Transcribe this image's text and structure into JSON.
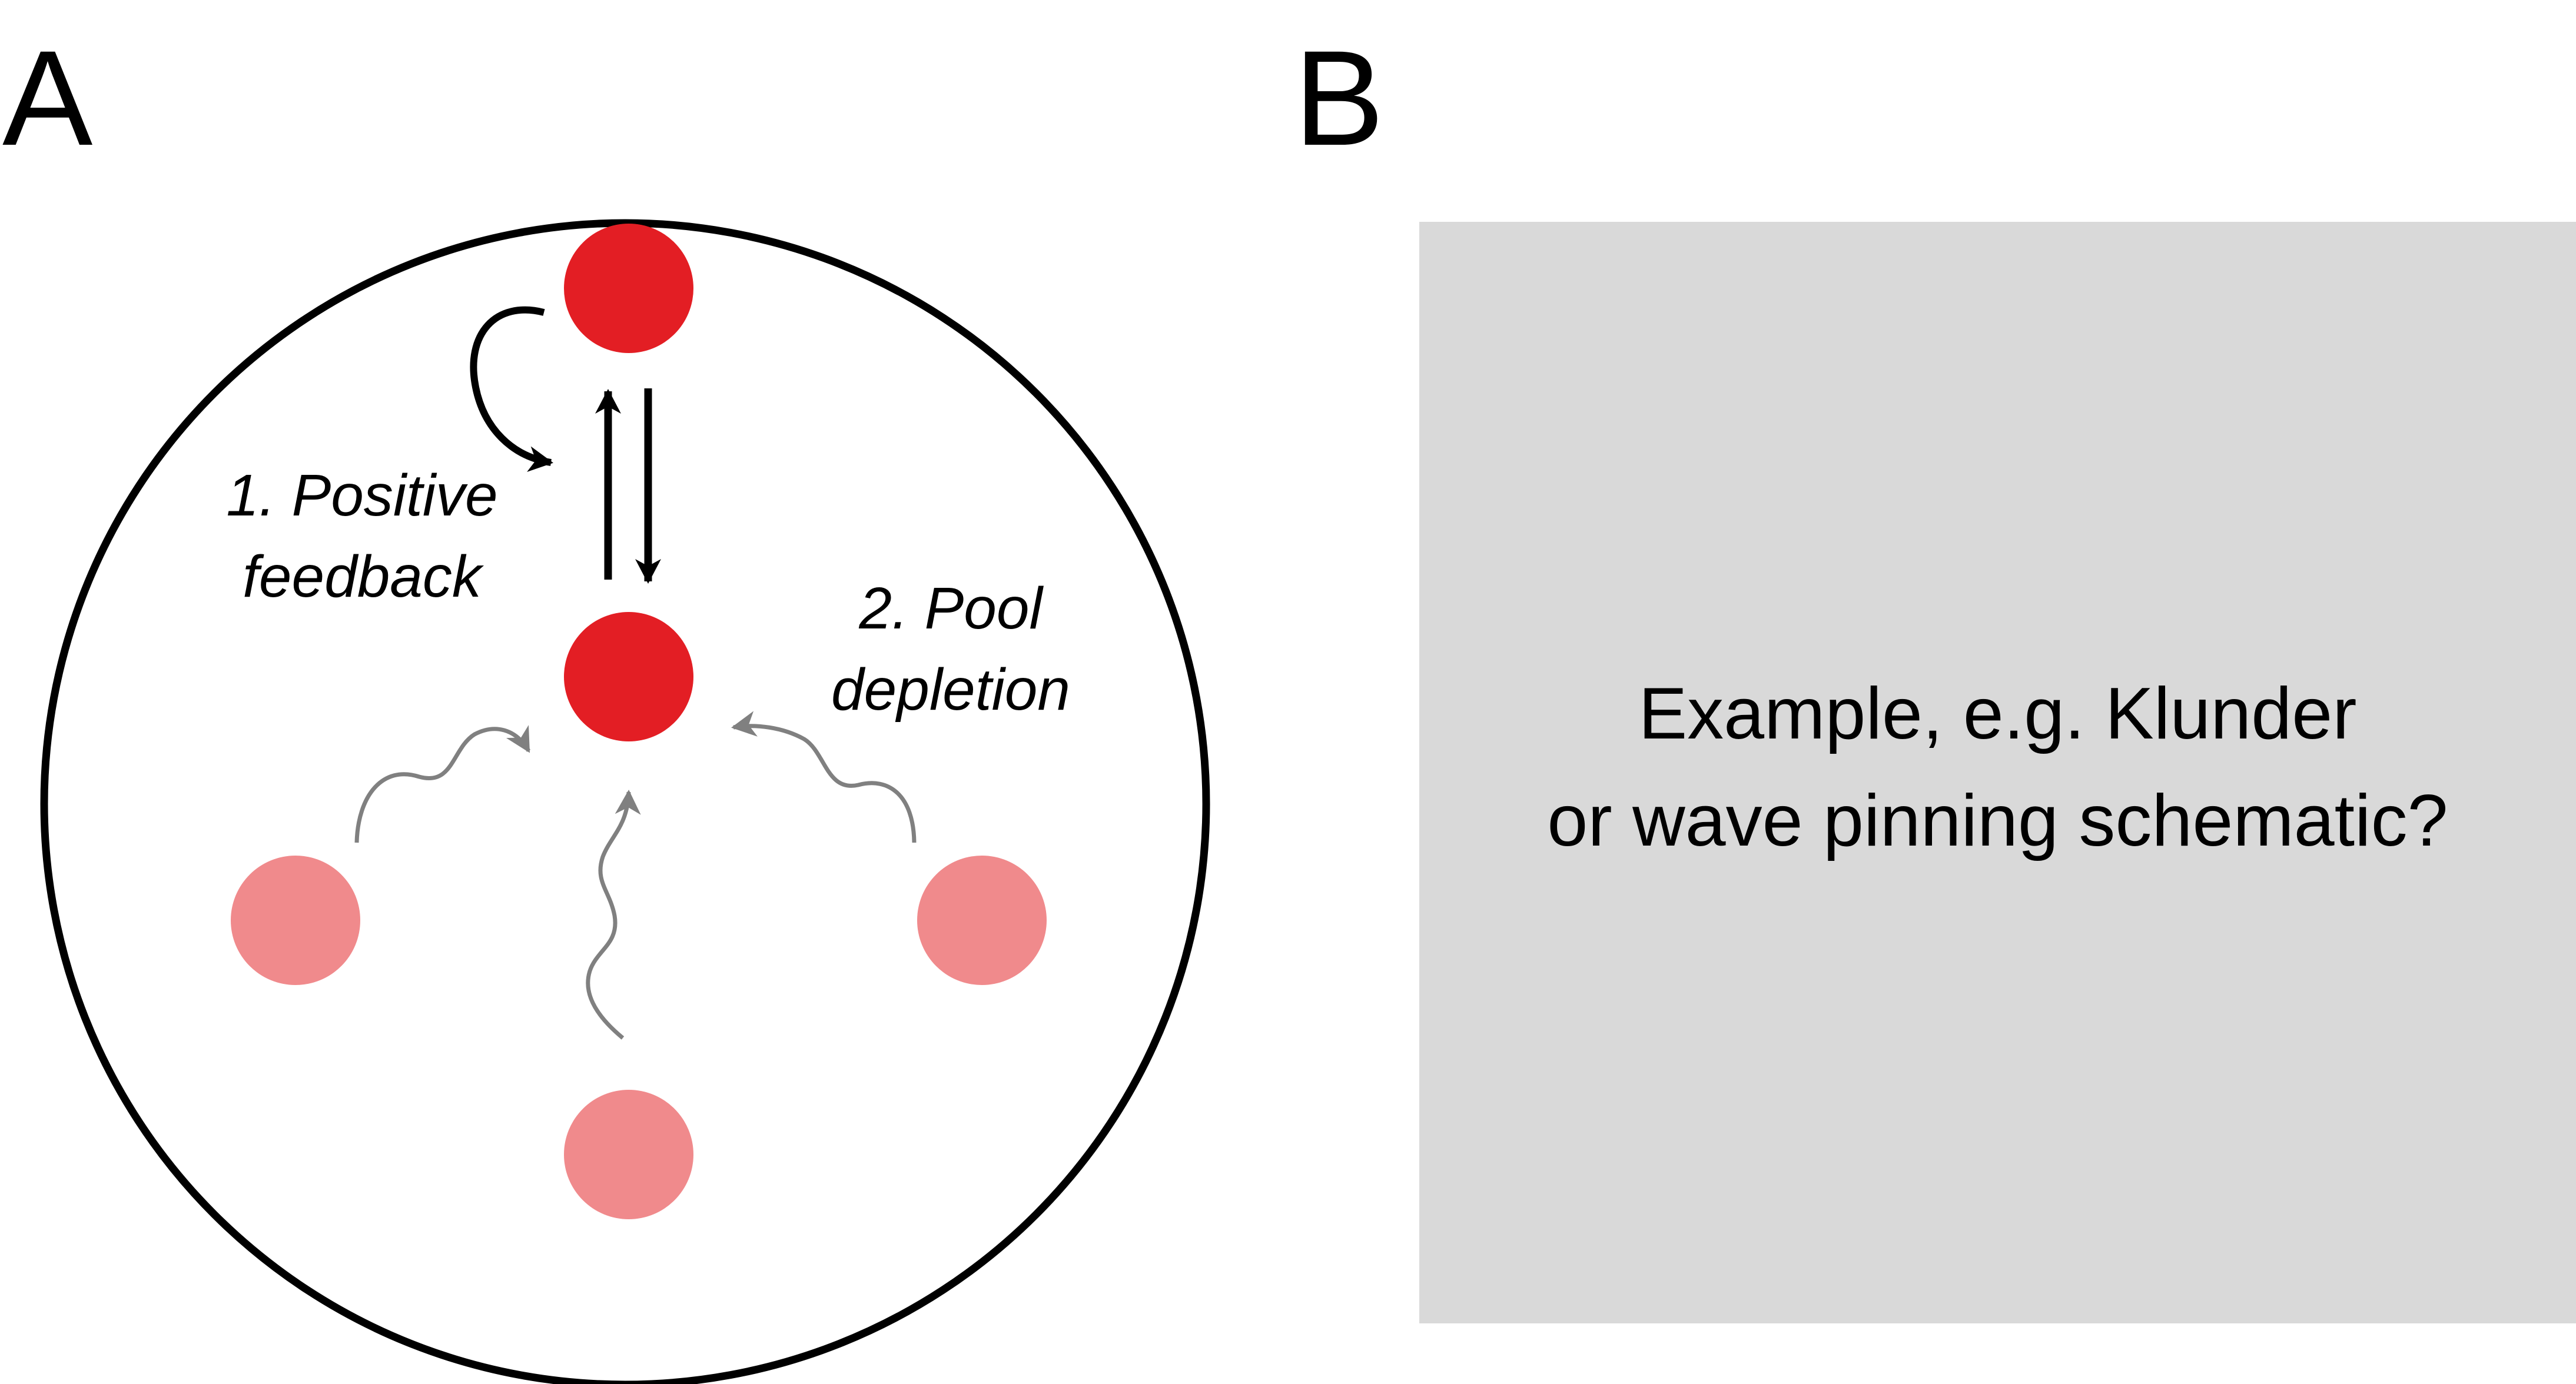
{
  "panels": {
    "a": {
      "letter": "A",
      "labels": {
        "positive_feedback": {
          "line1": "1. Positive",
          "line2": "feedback"
        },
        "pool_depletion": {
          "line1": "2. Pool",
          "line2": "depletion"
        }
      }
    },
    "b": {
      "letter": "B",
      "placeholder": {
        "line1": "Example, e.g. Klunder",
        "line2": "or wave pinning schematic?"
      }
    }
  },
  "colors": {
    "active": "#e31e24",
    "inactive": "#f08a8c",
    "arrow": "#000000",
    "diffusion_arrow": "#808080",
    "cell_outline": "#000000",
    "placeholder_bg": "#d9d9d9"
  }
}
